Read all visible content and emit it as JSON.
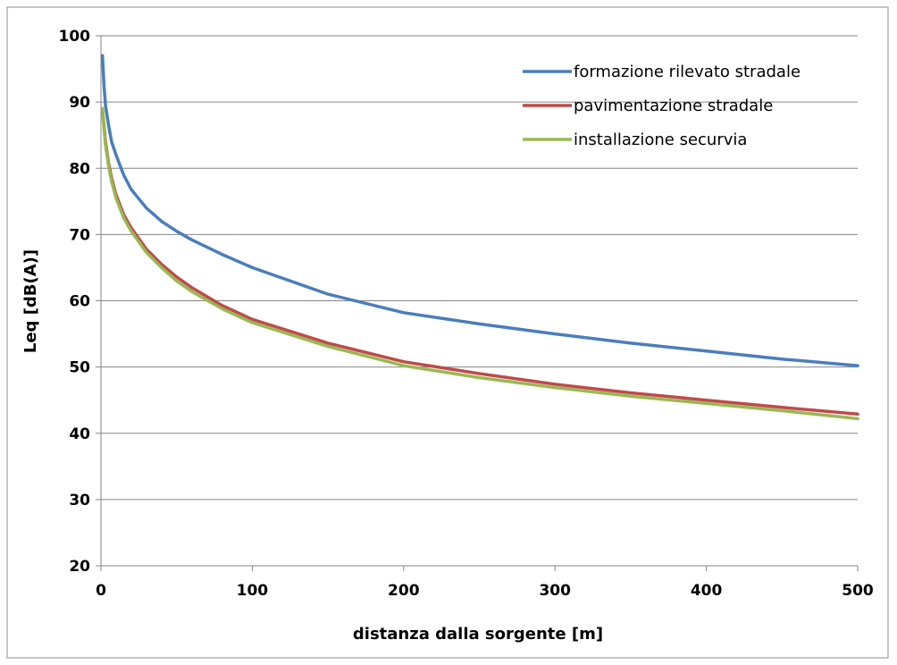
{
  "chart_data": {
    "type": "line",
    "title": "",
    "xlabel": "distanza dalla sorgente [m]",
    "ylabel": "Leq [dB(A)]",
    "xlim": [
      0,
      500
    ],
    "ylim": [
      20,
      100
    ],
    "xticks": [
      0,
      100,
      200,
      300,
      400,
      500
    ],
    "yticks": [
      20,
      30,
      40,
      50,
      60,
      70,
      80,
      90,
      100
    ],
    "grid": "horizontal",
    "legend_position": "top-right",
    "series": [
      {
        "name": "formazione rilevato stradale",
        "color": "#4a7ebb",
        "x": [
          1,
          2,
          3,
          5,
          7,
          10,
          15,
          20,
          30,
          40,
          50,
          60,
          80,
          100,
          150,
          200,
          250,
          300,
          350,
          400,
          450,
          500
        ],
        "y": [
          97,
          92.5,
          89.5,
          86.5,
          84,
          82,
          79,
          76.8,
          74,
          72,
          70.5,
          69.2,
          67,
          65,
          61,
          58.2,
          56.5,
          55,
          53.6,
          52.4,
          51.2,
          50.2
        ]
      },
      {
        "name": "pavimentazione stradale",
        "color": "#be4b48",
        "x": [
          1,
          2,
          3,
          5,
          7,
          10,
          15,
          20,
          30,
          40,
          50,
          60,
          80,
          100,
          150,
          200,
          250,
          300,
          350,
          400,
          450,
          500
        ],
        "y": [
          89,
          86.5,
          84,
          80.8,
          78.5,
          76,
          73,
          71,
          67.8,
          65.5,
          63.6,
          62,
          59.3,
          57.2,
          53.6,
          50.8,
          49,
          47.4,
          46.1,
          45,
          43.9,
          42.9
        ]
      },
      {
        "name": "installazione securvia",
        "color": "#98b954",
        "x": [
          1,
          2,
          3,
          5,
          7,
          10,
          15,
          20,
          30,
          40,
          50,
          60,
          80,
          100,
          150,
          200,
          250,
          300,
          350,
          400,
          450,
          500
        ],
        "y": [
          89,
          86,
          83.5,
          80.3,
          78,
          75.5,
          72.5,
          70.5,
          67.3,
          65,
          63,
          61.4,
          58.8,
          56.7,
          53.1,
          50.2,
          48.4,
          46.9,
          45.6,
          44.5,
          43.4,
          42.2
        ]
      }
    ]
  }
}
